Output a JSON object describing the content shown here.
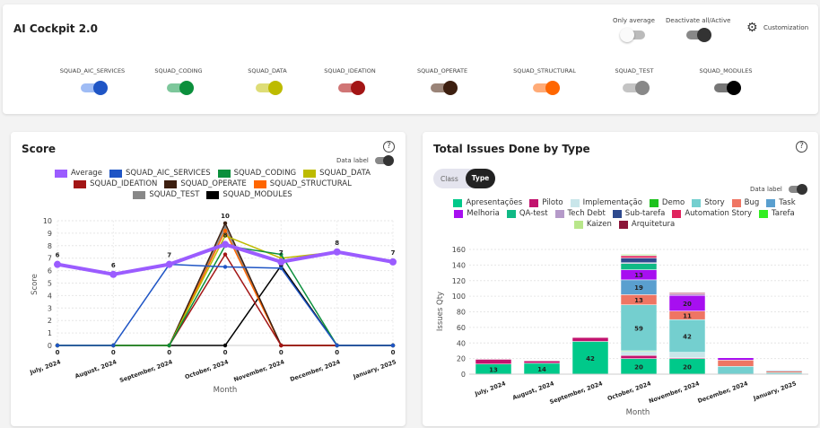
{
  "header": {
    "title": "AI Cockpit 2.0",
    "only_average": "Only average",
    "deactivate": "Deactivate all/Active",
    "customization": "Customization"
  },
  "squads": [
    {
      "name": "SQUAD_AIC_SERVICES",
      "color": "#1f55c5",
      "track": "#9fbcf5"
    },
    {
      "name": "SQUAD_CODING",
      "color": "#0b8f3c",
      "track": "#7dc79b"
    },
    {
      "name": "SQUAD_DATA",
      "color": "#bdbb00",
      "track": "#dedd77"
    },
    {
      "name": "SQUAD_IDEATION",
      "color": "#a31515",
      "track": "#d07575"
    },
    {
      "name": "SQUAD_OPERATE",
      "color": "#3d1f10",
      "track": "#9a8478"
    },
    {
      "name": "SQUAD_STRUCTURAL",
      "color": "#ff6600",
      "track": "#ffab77"
    },
    {
      "name": "SQUAD_TEST",
      "color": "#888888",
      "track": "#c4c4c4"
    },
    {
      "name": "SQUAD_MODULES",
      "color": "#000000",
      "track": "#777777"
    }
  ],
  "score": {
    "title": "Score",
    "data_label": "Data label",
    "help": "?"
  },
  "issues": {
    "title": "Total Issues Done by Type",
    "data_label": "Data label",
    "help": "?",
    "class_tab": "Class",
    "type_tab": "Type"
  },
  "chart_data": [
    {
      "type": "line",
      "title": "Score",
      "xlabel": "Month",
      "ylabel": "Score",
      "ylim": [
        0,
        10
      ],
      "categories": [
        "July, 2024",
        "August, 2024",
        "September, 2024",
        "October, 2024",
        "November, 2024",
        "December, 2024",
        "January, 2025"
      ],
      "series": [
        {
          "name": "Average",
          "color": "#9b5cff",
          "values": [
            6.5,
            5.7,
            6.5,
            8.1,
            6.7,
            7.5,
            6.7
          ],
          "labels": [
            "6",
            "6",
            "7",
            "8",
            "7",
            "8",
            "7"
          ]
        },
        {
          "name": "SQUAD_AIC_SERVICES",
          "color": "#1f55c5",
          "values": [
            0,
            0,
            6.5,
            6.3,
            6.2,
            0,
            0
          ]
        },
        {
          "name": "SQUAD_CODING",
          "color": "#0b8f3c",
          "values": [
            0,
            0,
            0,
            8,
            7.3,
            0,
            0
          ]
        },
        {
          "name": "SQUAD_DATA",
          "color": "#bdbb00",
          "values": [
            0,
            0,
            0,
            8.8,
            7,
            7.5,
            null
          ]
        },
        {
          "name": "SQUAD_IDEATION",
          "color": "#a31515",
          "values": [
            0,
            0,
            0,
            7.3,
            0,
            0,
            0
          ]
        },
        {
          "name": "SQUAD_OPERATE",
          "color": "#3d1f10",
          "values": [
            0,
            0,
            0,
            9.8,
            0,
            0,
            0
          ]
        },
        {
          "name": "SQUAD_STRUCTURAL",
          "color": "#ff6600",
          "values": [
            0,
            0,
            0,
            9.2,
            0,
            0,
            0
          ]
        },
        {
          "name": "SQUAD_TEST",
          "color": "#888888",
          "values": [
            0,
            0,
            0,
            9.5,
            0,
            0,
            0
          ]
        },
        {
          "name": "SQUAD_MODULES",
          "color": "#000000",
          "values": [
            0,
            0,
            0,
            0,
            6.4,
            0,
            0
          ]
        }
      ],
      "peak_label": "10",
      "zero_label": "0"
    },
    {
      "type": "bar",
      "stacked": true,
      "title": "Total Issues Done by Type",
      "xlabel": "Month",
      "ylabel": "Issues Qty",
      "ylim": [
        0,
        160
      ],
      "categories": [
        "July, 2024",
        "August, 2024",
        "September, 2024",
        "October, 2024",
        "November, 2024",
        "December, 2024",
        "January, 2025"
      ],
      "series": [
        {
          "name": "Apresentações",
          "color": "#00c98a",
          "values": [
            13,
            14,
            42,
            20,
            20,
            0,
            0
          ]
        },
        {
          "name": "Piloto",
          "color": "#c2136e",
          "values": [
            6,
            3,
            5,
            4,
            1,
            0,
            0
          ]
        },
        {
          "name": "Implementação",
          "color": "#c9e6ea",
          "values": [
            0,
            0,
            0,
            5,
            7,
            0,
            0
          ]
        },
        {
          "name": "Demo",
          "color": "#1ec21e",
          "values": [
            0,
            0,
            0,
            1,
            0,
            0,
            0
          ]
        },
        {
          "name": "Story",
          "color": "#74cfcf",
          "values": [
            0,
            0,
            0,
            59,
            42,
            10,
            2
          ]
        },
        {
          "name": "Bug",
          "color": "#ef7563",
          "values": [
            0,
            0,
            0,
            13,
            11,
            8,
            2
          ]
        },
        {
          "name": "Task",
          "color": "#5a9fcf",
          "values": [
            0,
            0,
            0,
            19,
            0,
            0,
            1
          ]
        },
        {
          "name": "Melhoria",
          "color": "#a70ff0",
          "values": [
            0,
            0,
            0,
            13,
            20,
            3,
            0
          ]
        },
        {
          "name": "QA-test",
          "color": "#10b985",
          "values": [
            0,
            0,
            0,
            8,
            0,
            0,
            0
          ]
        },
        {
          "name": "Tech Debt",
          "color": "#b59ac9",
          "values": [
            0,
            0,
            0,
            1,
            2,
            0,
            0
          ]
        },
        {
          "name": "Sub-tarefa",
          "color": "#2e4a8e",
          "values": [
            0,
            0,
            0,
            6,
            0,
            0,
            0
          ]
        },
        {
          "name": "Automation Story",
          "color": "#e0245e",
          "values": [
            0,
            0,
            0,
            3,
            1,
            0,
            0
          ]
        },
        {
          "name": "Tarefa",
          "color": "#33ee22",
          "values": [
            0,
            0,
            0,
            1,
            0,
            0,
            0
          ]
        },
        {
          "name": "Kaizen",
          "color": "#b8e68a",
          "values": [
            0,
            0,
            0,
            1,
            0,
            0,
            0
          ]
        },
        {
          "name": "Arquitetura",
          "color": "#8b1538",
          "values": [
            0,
            0,
            0,
            0,
            1,
            0,
            0
          ]
        }
      ]
    }
  ]
}
